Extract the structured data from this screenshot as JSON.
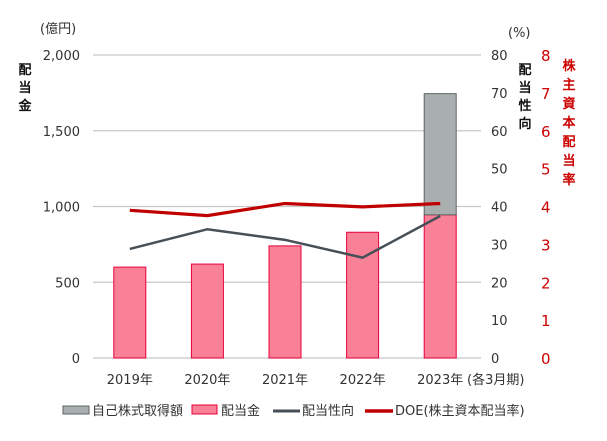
{
  "chart_data": {
    "type": "bar",
    "categories": [
      "2019年",
      "2020年",
      "2021年",
      "2022年",
      "2023年"
    ],
    "period_note": "(各3月期)",
    "left_axis": {
      "unit": "(億円)",
      "label": "配当金",
      "ylim": [
        0,
        2000
      ],
      "ticks": [
        "0",
        "500",
        "1,000",
        "1,500",
        "2,000"
      ]
    },
    "right_axis": {
      "unit": "(%)",
      "label": "配当性向",
      "ylim": [
        0,
        80
      ],
      "ticks": [
        "0",
        "10",
        "20",
        "30",
        "40",
        "50",
        "60",
        "70",
        "80"
      ]
    },
    "doe_axis": {
      "label": "株主資本配当率",
      "ylim": [
        0,
        8
      ],
      "ticks": [
        "0",
        "1",
        "2",
        "3",
        "4",
        "5",
        "6",
        "7",
        "8"
      ],
      "color": "#cc0000"
    },
    "series": [
      {
        "name": "自己株式取得額",
        "kind": "bar-stacked",
        "axis": "left",
        "values": [
          0,
          0,
          0,
          0,
          800
        ],
        "color": "#a9aeae"
      },
      {
        "name": "配当金",
        "kind": "bar",
        "axis": "left",
        "values": [
          600,
          620,
          740,
          830,
          945
        ],
        "color": "#f98197"
      },
      {
        "name": "配当性向",
        "kind": "line",
        "axis": "right",
        "values": [
          28.8,
          34.0,
          31.2,
          26.5,
          37.5
        ],
        "color": "#474f57"
      },
      {
        "name": "DOE(株主資本配当率)",
        "kind": "line",
        "axis": "doe",
        "values": [
          3.9,
          3.76,
          4.08,
          3.99,
          4.08
        ],
        "color": "#c00000"
      }
    ],
    "grid": true,
    "legend": "bottom"
  }
}
